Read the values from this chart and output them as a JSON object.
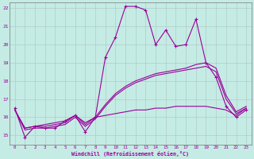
{
  "xlabel": "Windchill (Refroidissement éolien,°C)",
  "bg_color": "#c5ebe5",
  "grid_color": "#b0ccc8",
  "line_color": "#990099",
  "xmin": 0,
  "xmax": 23,
  "ymin": 15,
  "ymax": 22,
  "yticks": [
    15,
    16,
    17,
    18,
    19,
    20,
    21,
    22
  ],
  "xticks": [
    0,
    1,
    2,
    3,
    4,
    5,
    6,
    7,
    8,
    9,
    10,
    11,
    12,
    13,
    14,
    15,
    16,
    17,
    18,
    19,
    20,
    21,
    22,
    23
  ],
  "s1_x": [
    0,
    1,
    2,
    3,
    4,
    5,
    6,
    7,
    8,
    9,
    10,
    11,
    12,
    13,
    14,
    15,
    16,
    17,
    18,
    19,
    20,
    21,
    22,
    23
  ],
  "s1_y": [
    16.5,
    14.9,
    15.5,
    15.4,
    15.4,
    15.8,
    16.1,
    15.2,
    16.0,
    19.3,
    20.4,
    22.1,
    22.1,
    21.9,
    20.0,
    20.8,
    19.9,
    20.0,
    21.4,
    19.0,
    18.2,
    16.6,
    16.0,
    16.4
  ],
  "s2_x": [
    0,
    1,
    2,
    3,
    4,
    5,
    6,
    7,
    8,
    9,
    10,
    11,
    12,
    13,
    14,
    15,
    16,
    17,
    18,
    19,
    20,
    21,
    22,
    23
  ],
  "s2_y": [
    16.4,
    15.3,
    15.4,
    15.4,
    15.5,
    15.6,
    16.0,
    15.5,
    15.9,
    16.6,
    17.2,
    17.6,
    17.9,
    18.1,
    18.3,
    18.4,
    18.5,
    18.6,
    18.7,
    18.8,
    18.5,
    17.0,
    16.2,
    16.5
  ],
  "s3_x": [
    0,
    1,
    2,
    3,
    4,
    5,
    6,
    7,
    8,
    9,
    10,
    11,
    12,
    13,
    14,
    15,
    16,
    17,
    18,
    19,
    20,
    21,
    22,
    23
  ],
  "s3_y": [
    16.4,
    15.4,
    15.5,
    15.5,
    15.6,
    15.7,
    16.1,
    15.6,
    16.0,
    16.7,
    17.3,
    17.7,
    18.0,
    18.2,
    18.4,
    18.5,
    18.6,
    18.7,
    18.9,
    19.0,
    18.7,
    17.2,
    16.3,
    16.6
  ],
  "s4_x": [
    0,
    1,
    2,
    3,
    4,
    5,
    6,
    7,
    8,
    9,
    10,
    11,
    12,
    13,
    14,
    15,
    16,
    17,
    18,
    19,
    20,
    21,
    22,
    23
  ],
  "s4_y": [
    16.4,
    15.4,
    15.5,
    15.6,
    15.7,
    15.8,
    16.1,
    15.7,
    16.0,
    16.1,
    16.2,
    16.3,
    16.4,
    16.4,
    16.5,
    16.5,
    16.6,
    16.6,
    16.6,
    16.6,
    16.5,
    16.4,
    16.1,
    16.5
  ]
}
